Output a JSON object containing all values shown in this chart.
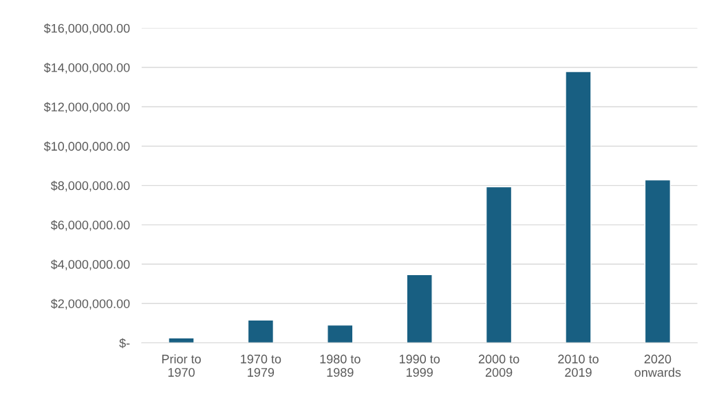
{
  "chart_data": {
    "type": "bar",
    "categories": [
      "Prior to\n1970",
      "1970 to\n1979",
      "1980 to\n1989",
      "1990 to\n1999",
      "2000 to\n2009",
      "2010 to\n2019",
      "2020\nonwards"
    ],
    "values": [
      250000,
      1160000,
      910000,
      3470000,
      7930000,
      13790000,
      8280000
    ],
    "color": "#185f82",
    "ylim": [
      0,
      16000000
    ],
    "yticks": [
      {
        "value": 0,
        "label": "$-"
      },
      {
        "value": 2000000,
        "label": "$2,000,000.00"
      },
      {
        "value": 4000000,
        "label": "$4,000,000.00"
      },
      {
        "value": 6000000,
        "label": "$6,000,000.00"
      },
      {
        "value": 8000000,
        "label": "$8,000,000.00"
      },
      {
        "value": 10000000,
        "label": "$10,000,000.00"
      },
      {
        "value": 12000000,
        "label": "$12,000,000.00"
      },
      {
        "value": 14000000,
        "label": "$14,000,000.00"
      },
      {
        "value": 16000000,
        "label": "$16,000,000.00"
      }
    ],
    "grid": "y"
  }
}
